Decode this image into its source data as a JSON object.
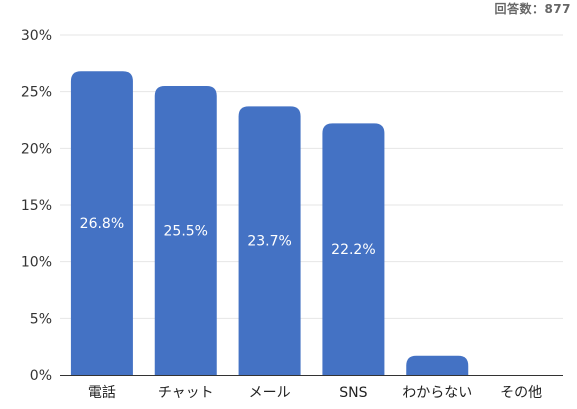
{
  "respondents_label": "回答数：877",
  "chart_data": {
    "type": "bar",
    "categories": [
      "電話",
      "チャット",
      "メール",
      "SNS",
      "わからない",
      "その他"
    ],
    "values": [
      26.8,
      25.5,
      23.7,
      22.2,
      1.7,
      0.0
    ],
    "data_labels": [
      "26.8%",
      "25.5%",
      "23.7%",
      "22.2%",
      "",
      ""
    ],
    "y_ticks": [
      "0%",
      "5%",
      "10%",
      "15%",
      "20%",
      "25%",
      "30%"
    ],
    "ylim": [
      0,
      30
    ],
    "grid": true,
    "bar_color": "#4472c4",
    "grid_color": "#e6e6e6",
    "axis_color": "#333333"
  }
}
